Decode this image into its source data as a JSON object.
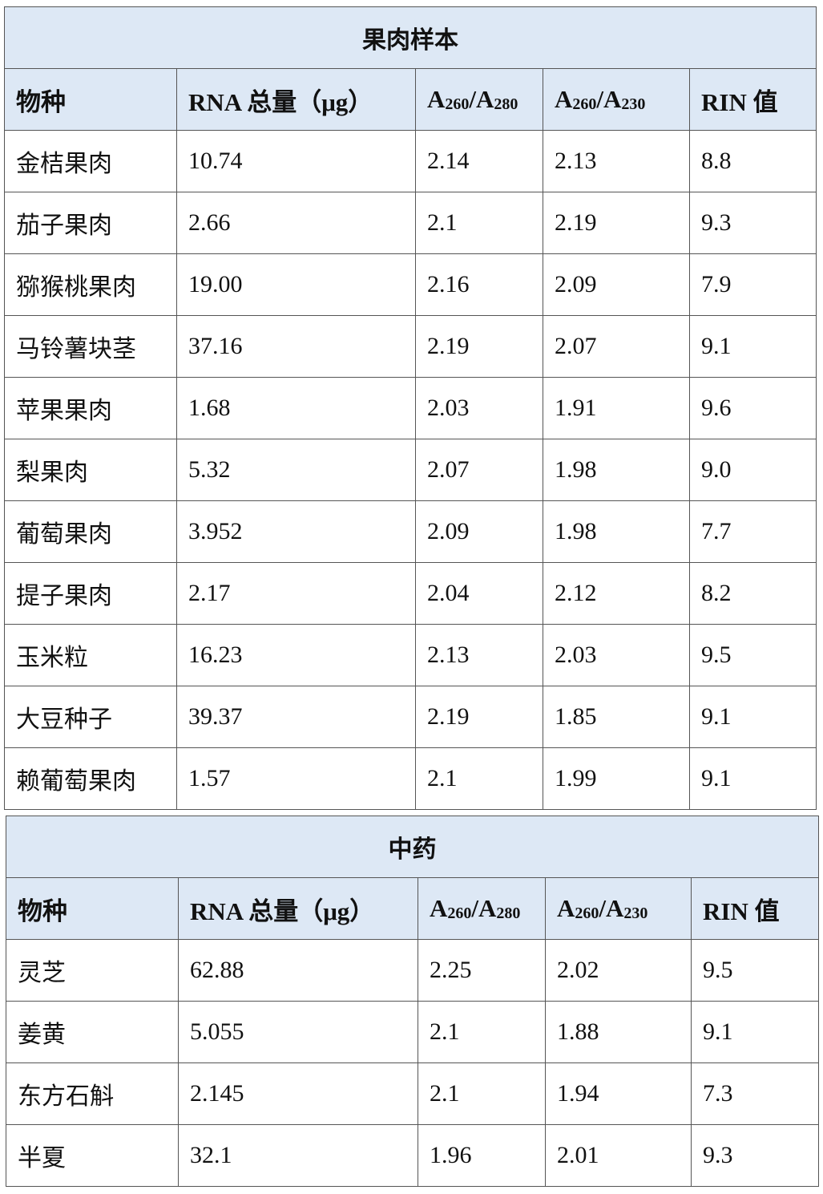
{
  "tables": [
    {
      "title": "果肉样本",
      "headers": [
        "物种",
        "RNA 总量（μg）",
        "A260/A280",
        "A260/A230",
        "RIN 值"
      ],
      "rows": [
        [
          "金桔果肉",
          "10.74",
          "2.14",
          "2.13",
          "8.8"
        ],
        [
          "茄子果肉",
          "2.66",
          "2.1",
          "2.19",
          "9.3"
        ],
        [
          "猕猴桃果肉",
          "19.00",
          "2.16",
          "2.09",
          "7.9"
        ],
        [
          "马铃薯块茎",
          "37.16",
          "2.19",
          "2.07",
          "9.1"
        ],
        [
          "苹果果肉",
          "1.68",
          "2.03",
          "1.91",
          "9.6"
        ],
        [
          "梨果肉",
          "5.32",
          "2.07",
          "1.98",
          "9.0"
        ],
        [
          "葡萄果肉",
          "3.952",
          "2.09",
          "1.98",
          "7.7"
        ],
        [
          "提子果肉",
          "2.17",
          "2.04",
          "2.12",
          "8.2"
        ],
        [
          "玉米粒",
          "16.23",
          "2.13",
          "2.03",
          "9.5"
        ],
        [
          "大豆种子",
          "39.37",
          "2.19",
          "1.85",
          "9.1"
        ],
        [
          "赖葡萄果肉",
          "1.57",
          "2.1",
          "1.99",
          "9.1"
        ]
      ]
    },
    {
      "title": "中药",
      "headers": [
        "物种",
        "RNA 总量（μg）",
        "A260/A280",
        "A260/A230",
        "RIN 值"
      ],
      "rows": [
        [
          "灵芝",
          "62.88",
          "2.25",
          "2.02",
          "9.5"
        ],
        [
          "姜黄",
          "5.055",
          "2.1",
          "1.88",
          "9.1"
        ],
        [
          "东方石斛",
          "2.145",
          "2.1",
          "1.94",
          "7.3"
        ],
        [
          "半夏",
          "32.1",
          "1.96",
          "2.01",
          "9.3"
        ]
      ]
    }
  ],
  "colors": {
    "header_bg": "#dde8f5",
    "border": "#555555"
  }
}
